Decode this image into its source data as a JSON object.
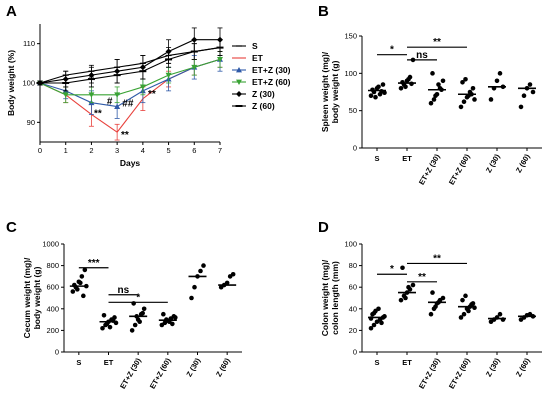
{
  "chart_data": [
    {
      "panel": "A",
      "type": "line",
      "xlabel": "Days",
      "ylabel": "Body weight (%)",
      "xlim": [
        0,
        7
      ],
      "ylim": [
        85,
        115
      ],
      "xticks": [
        "0",
        "1",
        "2",
        "3",
        "4",
        "5",
        "6",
        "7"
      ],
      "yticks": [
        "90",
        "100",
        "110"
      ],
      "x": [
        0,
        1,
        2,
        3,
        4,
        5,
        6,
        7
      ],
      "series": [
        {
          "name": "S",
          "color": "#000000",
          "marker": "line",
          "values": [
            100,
            102,
            103,
            104,
            105,
            107,
            108,
            109
          ],
          "err": [
            0.5,
            1,
            1.5,
            2,
            2,
            2,
            2,
            2
          ]
        },
        {
          "name": "ET",
          "color": "#e8413c",
          "marker": "none",
          "values": [
            100,
            97,
            92,
            87.5,
            96,
            101,
            104,
            106
          ],
          "err": [
            0.5,
            2,
            3,
            2,
            3,
            2,
            2,
            2
          ]
        },
        {
          "name": "ET+Z (30)",
          "color": "#2f5aa8",
          "marker": "triangle-up",
          "values": [
            100,
            98,
            95,
            94,
            98,
            101,
            104,
            106
          ],
          "err": [
            0.5,
            2,
            3,
            3,
            3,
            3,
            3,
            3
          ]
        },
        {
          "name": "ET+Z (60)",
          "color": "#3aa335",
          "marker": "triangle-down",
          "values": [
            100,
            97,
            97,
            97,
            99,
            102,
            104,
            106
          ],
          "err": [
            0.5,
            2,
            2,
            2,
            2,
            2,
            2,
            2
          ]
        },
        {
          "name": "Z (30)",
          "color": "#000000",
          "marker": "diamond",
          "values": [
            100,
            101,
            102,
            103,
            104,
            108,
            111,
            111
          ],
          "err": [
            0.5,
            2,
            2,
            3,
            3,
            3,
            3,
            3
          ]
        },
        {
          "name": "Z (60)",
          "color": "#000000",
          "marker": "dash",
          "values": [
            100,
            100,
            101,
            102,
            103,
            106,
            108,
            109
          ],
          "err": [
            0.5,
            2,
            2,
            2,
            2,
            2,
            2,
            2
          ]
        }
      ],
      "annotations": [
        {
          "text": "**",
          "x": 2.1,
          "y": 91.5
        },
        {
          "text": "#",
          "x": 2.6,
          "y": 94.5
        },
        {
          "text": "##",
          "x": 3.2,
          "y": 94
        },
        {
          "text": "**",
          "x": 4.2,
          "y": 96.5
        },
        {
          "text": "**",
          "x": 3.15,
          "y": 86
        }
      ]
    },
    {
      "panel": "B",
      "type": "scatter",
      "ylabel": "Spleen weight (mg)/ body weight (g)",
      "ylim": [
        0,
        150
      ],
      "yticks": [
        "0",
        "50",
        "100",
        "150"
      ],
      "categories": [
        "S",
        "ET",
        "ET+Z (30)",
        "ET+Z (60)",
        "Z (30)",
        "Z (60)"
      ],
      "points": [
        [
          70,
          75,
          80,
          72,
          85,
          78,
          68,
          82,
          76,
          74
        ],
        [
          80,
          85,
          90,
          95,
          118,
          88,
          82,
          92,
          86
        ],
        [
          60,
          65,
          72,
          80,
          90,
          100,
          70,
          85,
          78
        ],
        [
          55,
          62,
          68,
          75,
          80,
          88,
          92,
          70,
          72,
          65
        ],
        [
          65,
          80,
          90,
          100,
          82
        ],
        [
          55,
          70,
          80,
          85,
          75
        ]
      ],
      "medians": [
        77,
        87,
        78,
        72,
        82,
        80
      ],
      "brackets": [
        {
          "from": 0,
          "to": 1,
          "y": 125,
          "text": "*"
        },
        {
          "from": 1,
          "to": 2,
          "y": 118,
          "text": "ns"
        },
        {
          "from": 1,
          "to": 3,
          "y": 135,
          "text": "**"
        }
      ]
    },
    {
      "panel": "C",
      "type": "scatter",
      "ylabel": "Cecum weight (mg)/ body weight (g)",
      "ylim": [
        0,
        1000
      ],
      "yticks": [
        "0",
        "200",
        "400",
        "600",
        "800",
        "1000"
      ],
      "categories": [
        "S",
        "ET",
        "ET+Z (30)",
        "ET+Z (60)",
        "Z (30)",
        "Z (60)"
      ],
      "points": [
        [
          560,
          600,
          650,
          700,
          760,
          620,
          580,
          640,
          520,
          610
        ],
        [
          220,
          250,
          280,
          300,
          320,
          340,
          260,
          230,
          290,
          270
        ],
        [
          200,
          250,
          300,
          350,
          400,
          450,
          330,
          280,
          360
        ],
        [
          250,
          270,
          290,
          310,
          330,
          350,
          300,
          280,
          260,
          320
        ],
        [
          500,
          600,
          700,
          750,
          800
        ],
        [
          600,
          620,
          640,
          700,
          720
        ]
      ],
      "medians": [
        610,
        280,
        330,
        295,
        700,
        620
      ],
      "brackets": [
        {
          "from": 0,
          "to": 1,
          "y": 780,
          "text": "***"
        },
        {
          "from": 1,
          "to": 2,
          "y": 530,
          "text": "ns"
        },
        {
          "from": 1,
          "to": 3,
          "y": 460,
          "text": "*"
        }
      ]
    },
    {
      "panel": "D",
      "type": "scatter",
      "ylabel": "Colon weight (mg)/ colon length (mm)",
      "ylim": [
        0,
        100
      ],
      "yticks": [
        "0",
        "20",
        "40",
        "60",
        "80",
        "100"
      ],
      "categories": [
        "S",
        "ET",
        "ET+Z (30)",
        "ET+Z (60)",
        "Z (30)",
        "Z (60)"
      ],
      "points": [
        [
          22,
          25,
          28,
          30,
          32,
          35,
          38,
          40,
          27,
          33,
          31,
          36
        ],
        [
          48,
          52,
          55,
          58,
          62,
          78,
          50,
          60
        ],
        [
          35,
          40,
          45,
          48,
          50,
          55,
          42,
          46
        ],
        [
          32,
          35,
          40,
          42,
          45,
          48,
          52,
          38,
          44,
          41
        ],
        [
          28,
          30,
          32,
          35,
          30
        ],
        [
          30,
          32,
          34,
          35,
          33
        ]
      ],
      "medians": [
        32,
        55,
        46,
        42,
        31,
        33
      ],
      "brackets": [
        {
          "from": 0,
          "to": 1,
          "y": 72,
          "text": "*"
        },
        {
          "from": 1,
          "to": 2,
          "y": 65,
          "text": "**"
        },
        {
          "from": 1,
          "to": 3,
          "y": 82,
          "text": "**"
        }
      ]
    }
  ]
}
